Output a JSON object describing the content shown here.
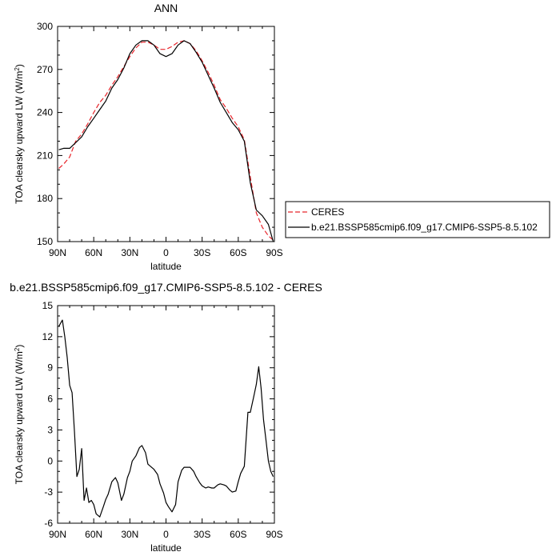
{
  "chart_data": [
    {
      "type": "line",
      "title": "ANN",
      "xlabel": "latitude",
      "ylabel_main": "TOA clearsky upward LW (W/m",
      "ylabel_sup": "2",
      "ylabel_close": ")",
      "xlim": [
        90,
        -90
      ],
      "ylim": [
        150,
        300
      ],
      "x_ticks": [
        90,
        60,
        30,
        0,
        -30,
        -60,
        -90
      ],
      "x_tick_labels": [
        "90N",
        "60N",
        "30N",
        "0",
        "30S",
        "60S",
        "90S"
      ],
      "y_ticks": [
        150,
        180,
        210,
        240,
        270,
        300
      ],
      "y_tick_labels": [
        "150",
        "180",
        "210",
        "240",
        "270",
        "300"
      ],
      "legend": {
        "placement": "right",
        "entries": [
          {
            "label": "CERES",
            "color": "#e8242a",
            "dash": true
          },
          {
            "label": "b.e21.BSSP585cmip6.f09_g17.CMIP6-SSP5-8.5.102",
            "color": "#000000",
            "dash": false
          }
        ]
      },
      "series": [
        {
          "name": "CERES",
          "color": "#e8242a",
          "dash": true,
          "x": [
            89,
            85,
            80,
            75,
            70,
            65,
            60,
            55,
            50,
            45,
            40,
            35,
            30,
            25,
            20,
            15,
            10,
            5,
            0,
            -5,
            -10,
            -15,
            -20,
            -25,
            -30,
            -35,
            -40,
            -45,
            -50,
            -55,
            -60,
            -65,
            -70,
            -75,
            -80,
            -85,
            -89
          ],
          "y": [
            201,
            204,
            209,
            220,
            225,
            232,
            240,
            247,
            252,
            259,
            265,
            272,
            279,
            285,
            289,
            289,
            287,
            284,
            284,
            286,
            289,
            290,
            288,
            283,
            276,
            268,
            259,
            249,
            243,
            236,
            230,
            221,
            195,
            170,
            160,
            154,
            151
          ]
        },
        {
          "name": "b.e21.BSSP585cmip6.f09_g17.CMIP6-SSP5-8.5.102",
          "color": "#000000",
          "dash": false,
          "x": [
            89,
            85,
            80,
            75,
            70,
            65,
            60,
            55,
            50,
            45,
            40,
            35,
            30,
            25,
            20,
            15,
            10,
            5,
            0,
            -5,
            -10,
            -15,
            -20,
            -25,
            -30,
            -35,
            -40,
            -45,
            -50,
            -55,
            -60,
            -65,
            -70,
            -75,
            -80,
            -85,
            -89
          ],
          "y": [
            214,
            215,
            215,
            219,
            223,
            230,
            236,
            242,
            248,
            257,
            263,
            271,
            281,
            287,
            290,
            290,
            287,
            281,
            279,
            281,
            287,
            290,
            288,
            282,
            275,
            266,
            257,
            247,
            240,
            233,
            228,
            220,
            191,
            172,
            168,
            162,
            150
          ]
        }
      ]
    },
    {
      "type": "line",
      "title": "b.e21.BSSP585cmip6.f09_g17.CMIP6-SSP5-8.5.102 - CERES",
      "xlabel": "latitude",
      "ylabel_main": "TOA clearsky upward LW (W/m",
      "ylabel_sup": "2",
      "ylabel_close": ")",
      "xlim": [
        90,
        -90
      ],
      "ylim": [
        -6,
        15
      ],
      "x_ticks": [
        90,
        60,
        30,
        0,
        -30,
        -60,
        -90
      ],
      "x_tick_labels": [
        "90N",
        "60N",
        "30N",
        "0",
        "30S",
        "60S",
        "90S"
      ],
      "y_ticks": [
        -6,
        -3,
        0,
        3,
        6,
        9,
        12,
        15
      ],
      "y_tick_labels": [
        "-6",
        "-3",
        "0",
        "3",
        "6",
        "9",
        "12",
        "15"
      ],
      "series": [
        {
          "color": "#000000",
          "dash": false,
          "x": [
            89,
            86,
            84,
            82,
            80,
            78,
            76,
            74,
            72,
            70,
            68,
            66,
            64,
            62,
            60,
            58,
            55,
            52,
            50,
            48,
            45,
            42,
            40,
            37,
            35,
            32,
            30,
            28,
            25,
            22,
            20,
            17,
            15,
            12,
            10,
            7,
            5,
            2,
            0,
            -2,
            -5,
            -8,
            -10,
            -13,
            -15,
            -18,
            -20,
            -23,
            -25,
            -28,
            -30,
            -33,
            -35,
            -38,
            -40,
            -43,
            -45,
            -48,
            -50,
            -53,
            -55,
            -58,
            -60,
            -62,
            -65,
            -68,
            -70,
            -73,
            -75,
            -77,
            -79,
            -81,
            -83,
            -85,
            -87,
            -89
          ],
          "y": [
            13.0,
            13.6,
            12.0,
            10.0,
            7.3,
            6.6,
            2.8,
            -1.5,
            -0.8,
            1.2,
            -3.8,
            -2.6,
            -4.0,
            -3.8,
            -4.2,
            -5.1,
            -5.4,
            -4.4,
            -3.7,
            -3.2,
            -2.0,
            -1.6,
            -2.1,
            -3.8,
            -3.2,
            -1.6,
            -1.0,
            0.0,
            0.5,
            1.3,
            1.5,
            0.8,
            -0.3,
            -0.6,
            -0.8,
            -1.3,
            -2.2,
            -3.1,
            -4.0,
            -4.4,
            -4.9,
            -4.2,
            -2.0,
            -0.9,
            -0.6,
            -0.6,
            -0.6,
            -1.0,
            -1.5,
            -2.1,
            -2.4,
            -2.6,
            -2.5,
            -2.6,
            -2.6,
            -2.3,
            -2.2,
            -2.3,
            -2.4,
            -2.8,
            -3.0,
            -2.9,
            -2.0,
            -1.2,
            -0.5,
            4.7,
            4.7,
            6.3,
            7.4,
            9.1,
            7.0,
            4.0,
            2.0,
            0.0,
            -1.0,
            -1.5
          ]
        }
      ]
    }
  ]
}
